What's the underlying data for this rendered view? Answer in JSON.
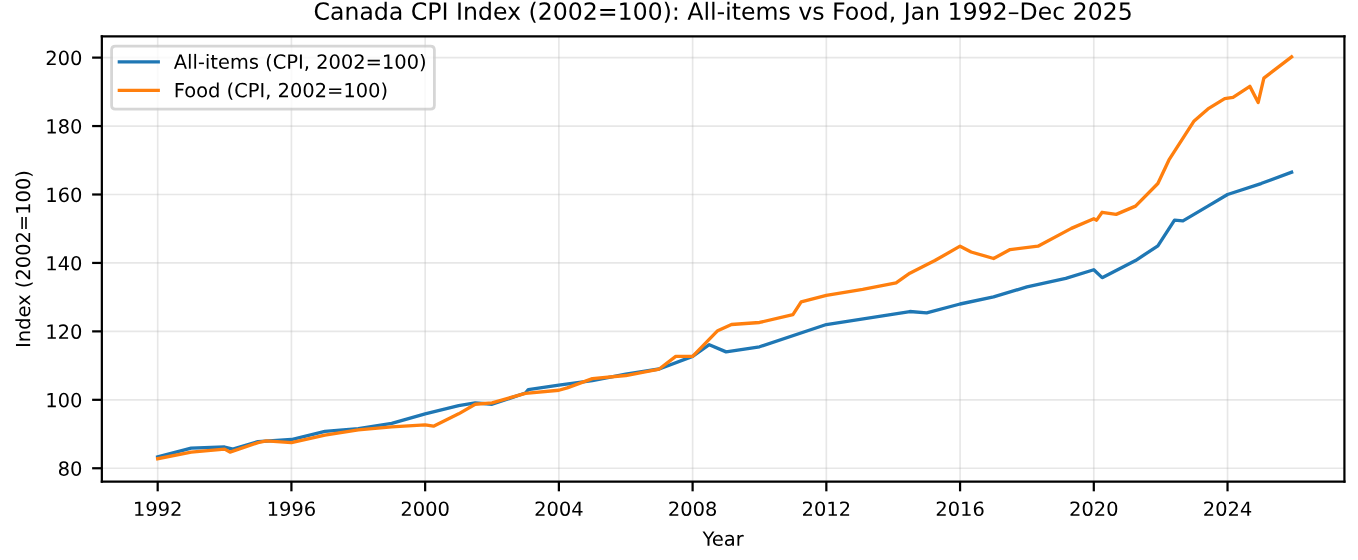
{
  "chart_data": {
    "type": "line",
    "title": "Canada CPI Index (2002=100): All-items vs Food, Jan 1992–Dec 2025",
    "xlabel": "Year",
    "ylabel": "Index (2002=100)",
    "series": [
      {
        "name": "All-items (CPI, 2002=100)",
        "color": "#1f77b4",
        "x": [
          "1992-01",
          "1993-01",
          "1994-01",
          "1994-04",
          "1995-01",
          "1996-01",
          "1997-01",
          "1998-01",
          "1999-01",
          "2000-01",
          "2001-01",
          "2001-07",
          "2002-01",
          "2003-01",
          "2003-02",
          "2004-01",
          "2005-01",
          "2006-01",
          "2007-01",
          "2008-01",
          "2008-07",
          "2009-01",
          "2010-01",
          "2012-01",
          "2014-07",
          "2015-01",
          "2016-01",
          "2017-01",
          "2018-01",
          "2019-03",
          "2020-01",
          "2020-04",
          "2021-04",
          "2021-12",
          "2022-06",
          "2022-09",
          "2023-06",
          "2024-01",
          "2025-01",
          "2025-12"
        ],
        "values": [
          83.3,
          85.9,
          86.2,
          85.6,
          87.8,
          88.4,
          90.8,
          91.6,
          93.1,
          95.9,
          98.3,
          99.1,
          98.7,
          102,
          103,
          104.3,
          105.6,
          107.5,
          109,
          112.7,
          116.1,
          114,
          115.5,
          122,
          125.8,
          125.4,
          128,
          130.1,
          133,
          135.5,
          138,
          135.7,
          140.7,
          145,
          152.5,
          152.3,
          156.6,
          160,
          163.2,
          166.5
        ]
      },
      {
        "name": "Food (CPI, 2002=100)",
        "color": "#ff7f0e",
        "x": [
          "1992-01",
          "1993-01",
          "1994-01",
          "1994-03",
          "1995-01",
          "1995-04",
          "1996-01",
          "1997-01",
          "1998-01",
          "1999-01",
          "2000-01",
          "2000-04",
          "2001-01",
          "2001-07",
          "2002-01",
          "2003-01",
          "2004-01",
          "2004-04",
          "2005-01",
          "2006-01",
          "2007-01",
          "2007-07",
          "2008-01",
          "2008-10",
          "2009-03",
          "2010-01",
          "2011-01",
          "2011-04",
          "2012-01",
          "2013-02",
          "2014-02",
          "2014-07",
          "2015-04",
          "2016-01",
          "2016-05",
          "2017-01",
          "2017-07",
          "2018-05",
          "2019-05",
          "2020-01",
          "2020-02",
          "2020-04",
          "2020-09",
          "2021-04",
          "2021-12",
          "2022-04",
          "2023-01",
          "2023-06",
          "2023-12",
          "2024-03",
          "2024-09",
          "2024-12",
          "2025-02",
          "2025-12"
        ],
        "values": [
          82.8,
          84.7,
          85.6,
          84.7,
          87.5,
          88,
          87.5,
          89.7,
          91.2,
          92.1,
          92.7,
          92.3,
          95.9,
          98.7,
          99.1,
          101.9,
          102.8,
          103.5,
          106.2,
          107.1,
          109,
          112.7,
          112.7,
          120.2,
          122,
          122.6,
          124.9,
          128.6,
          130.5,
          132.3,
          134.2,
          137,
          140.7,
          144.9,
          143.2,
          141.3,
          143.9,
          144.9,
          150.1,
          152.9,
          152.5,
          154.8,
          154.2,
          156.6,
          163.2,
          170.1,
          181.5,
          185,
          188,
          188.4,
          191.6,
          186.9,
          194,
          200.2
        ]
      }
    ],
    "xlim": [
      "1990-05",
      "2027-07"
    ],
    "xticks": [
      {
        "value": "1992",
        "label": "1992"
      },
      {
        "value": "1996",
        "label": "1996"
      },
      {
        "value": "2000",
        "label": "2000"
      },
      {
        "value": "2004",
        "label": "2004"
      },
      {
        "value": "2008",
        "label": "2008"
      },
      {
        "value": "2012",
        "label": "2012"
      },
      {
        "value": "2016",
        "label": "2016"
      },
      {
        "value": "2020",
        "label": "2020"
      },
      {
        "value": "2024",
        "label": "2024"
      }
    ],
    "ylim": [
      76.1,
      206.2
    ],
    "yticks": [
      80,
      100,
      120,
      140,
      160,
      180,
      200
    ],
    "grid": true,
    "legend": "top left",
    "line_style": "solid",
    "marker": "none"
  }
}
